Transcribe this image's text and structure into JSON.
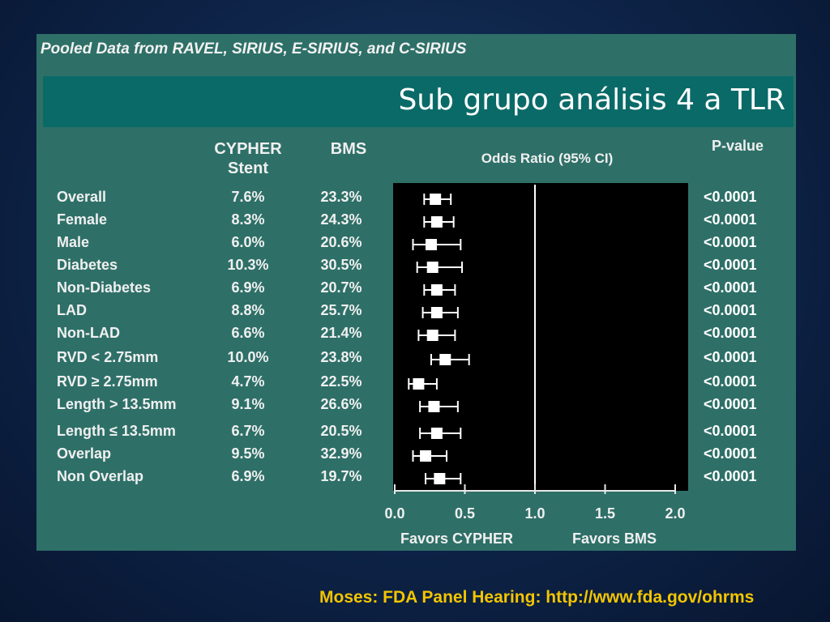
{
  "slide": {
    "panel_header": "Pooled Data from RAVEL, SIRIUS, E-SIRIUS, and C-SIRIUS",
    "title": "Sub grupo análisis 4 a TLR",
    "footer": "Moses: FDA Panel Hearing: http://www.fda.gov/ohrms"
  },
  "table": {
    "headers": {
      "cypher_line1": "CYPHER",
      "cypher_line2": "Stent",
      "bms": "BMS",
      "odds": "Odds Ratio (95% CI)",
      "pvalue": "P-value"
    }
  },
  "chart_data": {
    "type": "forest",
    "xlabel_left": "Favors CYPHER",
    "xlabel_right": "Favors BMS",
    "xlim": [
      0.0,
      2.0
    ],
    "x_ticks": [
      "0.0",
      "0.5",
      "1.0",
      "1.5",
      "2.0"
    ],
    "reference_line": 1.0,
    "rows": [
      {
        "label": "Overall",
        "cypher": "7.6%",
        "bms": "23.3%",
        "or": 0.29,
        "lo": 0.21,
        "hi": 0.4,
        "p": "<0.0001"
      },
      {
        "label": "Female",
        "cypher": "8.3%",
        "bms": "24.3%",
        "or": 0.3,
        "lo": 0.21,
        "hi": 0.42,
        "p": "<0.0001"
      },
      {
        "label": "Male",
        "cypher": "6.0%",
        "bms": "20.6%",
        "or": 0.26,
        "lo": 0.13,
        "hi": 0.47,
        "p": "<0.0001"
      },
      {
        "label": "Diabetes",
        "cypher": "10.3%",
        "bms": "30.5%",
        "or": 0.27,
        "lo": 0.16,
        "hi": 0.48,
        "p": "<0.0001"
      },
      {
        "label": "Non-Diabetes",
        "cypher": "6.9%",
        "bms": "20.7%",
        "or": 0.3,
        "lo": 0.21,
        "hi": 0.43,
        "p": "<0.0001"
      },
      {
        "label": "LAD",
        "cypher": "8.8%",
        "bms": "25.7%",
        "or": 0.3,
        "lo": 0.2,
        "hi": 0.45,
        "p": "<0.0001"
      },
      {
        "label": "Non-LAD",
        "cypher": "6.6%",
        "bms": "21.4%",
        "or": 0.27,
        "lo": 0.17,
        "hi": 0.43,
        "p": "<0.0001"
      },
      {
        "label": "RVD < 2.75mm",
        "cypher": "10.0%",
        "bms": "23.8%",
        "or": 0.36,
        "lo": 0.26,
        "hi": 0.53,
        "p": "<0.0001"
      },
      {
        "label": "RVD ≥ 2.75mm",
        "cypher": "4.7%",
        "bms": "22.5%",
        "or": 0.17,
        "lo": 0.1,
        "hi": 0.3,
        "p": "<0.0001"
      },
      {
        "label": "Length > 13.5mm",
        "cypher": "9.1%",
        "bms": "26.6%",
        "or": 0.28,
        "lo": 0.18,
        "hi": 0.45,
        "p": "<0.0001"
      },
      {
        "label": "Length ≤ 13.5mm",
        "cypher": "6.7%",
        "bms": "20.5%",
        "or": 0.3,
        "lo": 0.18,
        "hi": 0.47,
        "p": "<0.0001"
      },
      {
        "label": "Overlap",
        "cypher": "9.5%",
        "bms": "32.9%",
        "or": 0.22,
        "lo": 0.13,
        "hi": 0.37,
        "p": "<0.0001"
      },
      {
        "label": "Non Overlap",
        "cypher": "6.9%",
        "bms": "19.7%",
        "or": 0.32,
        "lo": 0.22,
        "hi": 0.47,
        "p": "<0.0001"
      }
    ],
    "colors": {
      "plot_bg": "#000000",
      "marker": "#ffffff"
    }
  }
}
